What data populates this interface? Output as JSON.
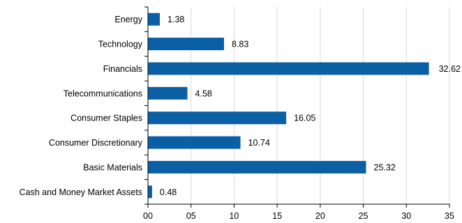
{
  "chart_data": {
    "type": "bar",
    "orientation": "horizontal",
    "categories": [
      "Energy",
      "Technology",
      "Financials",
      "Telecommunications",
      "Consumer Staples",
      "Consumer Discretionary",
      "Basic Materials",
      "Cash and Money Market Assets"
    ],
    "values": [
      1.38,
      8.83,
      32.62,
      4.58,
      16.05,
      10.74,
      25.32,
      0.48
    ],
    "value_labels": [
      "1.38",
      "8.83",
      "32.62",
      "4.58",
      "16.05",
      "10.74",
      "25.32",
      "0.48"
    ],
    "xlim": [
      0,
      35
    ],
    "xticks": [
      0,
      5,
      10,
      15,
      20,
      25,
      30,
      35
    ],
    "xtick_labels": [
      "00",
      "05",
      "10",
      "15",
      "20",
      "25",
      "30",
      "35"
    ],
    "grid": "vertical",
    "bar_color": "#0b5fa5",
    "grid_color": "#d9d9d9"
  }
}
